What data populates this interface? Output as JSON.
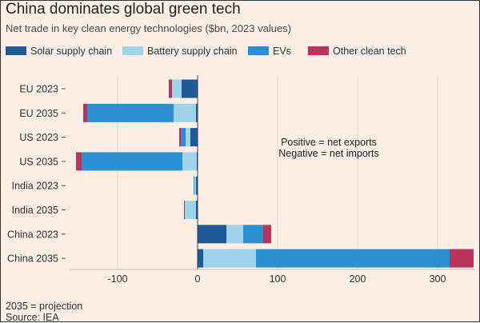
{
  "title": "China dominates global green tech",
  "subtitle": "Net trade in key clean energy technologies ($bn, 2023 values)",
  "footnote": "2035 = projection",
  "source": "Source: IEA",
  "colors": {
    "background": "#fbeee4",
    "grid": "#e2d6cc",
    "zero_line": "#3a3a3a",
    "text": "#333333"
  },
  "chart_data": {
    "type": "bar",
    "orientation": "horizontal",
    "stacked": true,
    "title": "China dominates global green tech",
    "subtitle": "Net trade in key clean energy technologies ($bn, 2023 values)",
    "xlabel": "",
    "ylabel": "",
    "xlim": [
      -150,
      350
    ],
    "xticks": [
      -100,
      0,
      100,
      200,
      300
    ],
    "grid": true,
    "legend_position": "top",
    "annotation": [
      "Positive = net exports",
      "Negative = net imports"
    ],
    "categories": [
      "EU 2023",
      "EU 2035",
      "US 2023",
      "US 2035",
      "India 2023",
      "India 2035",
      "China 2023",
      "China 2035"
    ],
    "series": [
      {
        "name": "Solar supply chain",
        "color": "#1f5a96",
        "values": [
          -20,
          -2,
          -9,
          -1,
          -2,
          -2,
          36,
          7
        ]
      },
      {
        "name": "Battery supply chain",
        "color": "#9fd3ea",
        "values": [
          -12,
          -28,
          -6,
          -18,
          -2,
          -14,
          21,
          66
        ]
      },
      {
        "name": "EVs",
        "color": "#2b8fd4",
        "values": [
          0,
          -108,
          -6,
          -126,
          -1,
          0,
          25,
          242
        ]
      },
      {
        "name": "Other clean tech",
        "color": "#b8335e",
        "values": [
          -4,
          -5,
          -2,
          -7,
          0,
          -1,
          10,
          30
        ]
      }
    ]
  }
}
